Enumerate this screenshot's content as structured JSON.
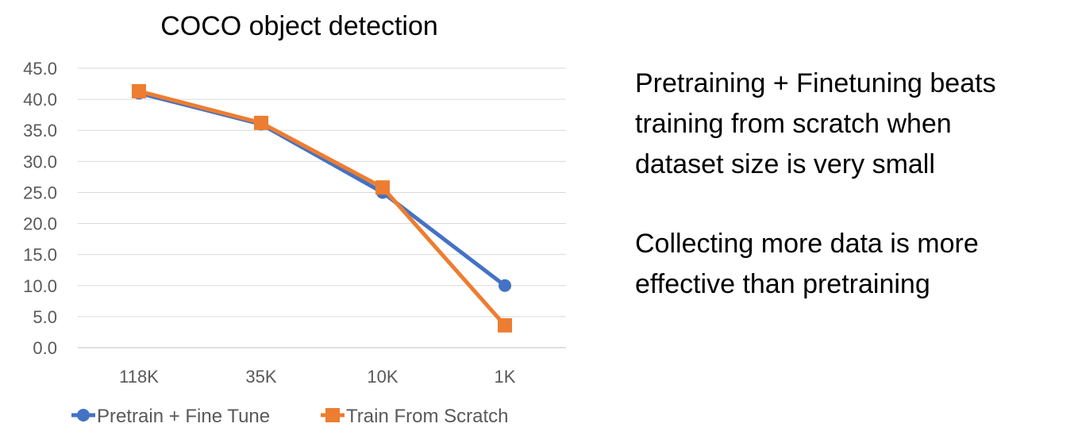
{
  "chart_data": {
    "type": "line",
    "title": "COCO object detection",
    "categories": [
      "118K",
      "35K",
      "10K",
      "1K"
    ],
    "ylim": [
      0,
      45
    ],
    "yticks": [
      "0.0",
      "5.0",
      "10.0",
      "15.0",
      "20.0",
      "25.0",
      "30.0",
      "35.0",
      "40.0",
      "45.0"
    ],
    "grid": true,
    "legend": "bottom",
    "series": [
      {
        "name": "Pretrain + Fine Tune",
        "values": [
          41.0,
          36.0,
          25.0,
          10.0
        ],
        "color": "#4472C4",
        "marker": "circle"
      },
      {
        "name": "Train From Scratch",
        "values": [
          41.3,
          36.2,
          25.8,
          3.6
        ],
        "color": "#ED7D31",
        "marker": "square"
      }
    ]
  },
  "notes": {
    "note1_lines": [
      "Pretraining + Finetuning beats",
      "training from scratch when",
      "dataset size is very small"
    ],
    "note2_lines": [
      "Collecting more data is more",
      "effective than pretraining"
    ]
  }
}
